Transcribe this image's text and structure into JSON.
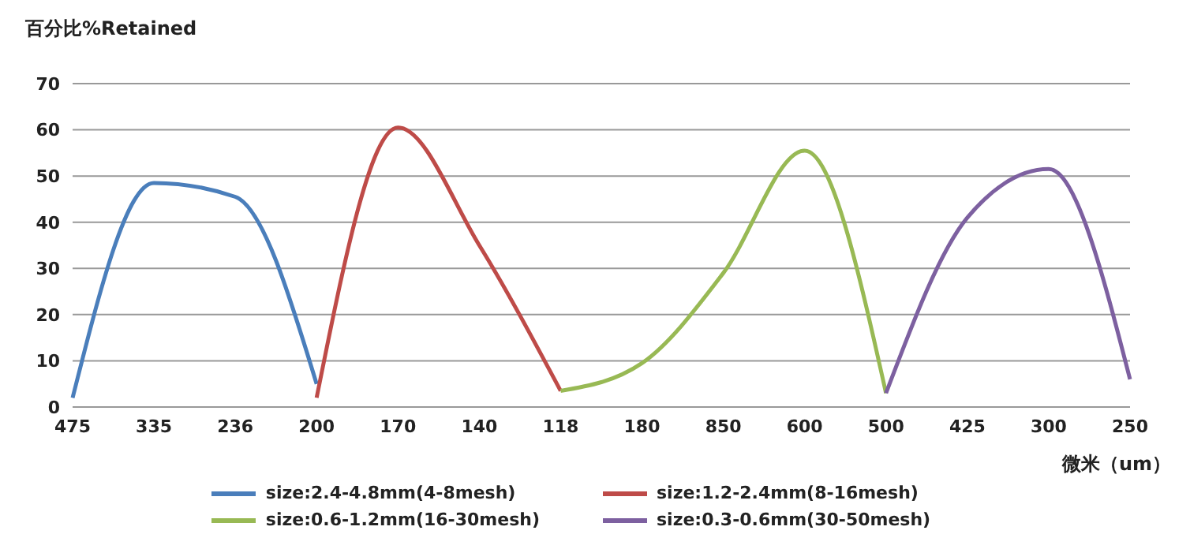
{
  "chart_data": {
    "type": "line",
    "ylabel": "百分比%Retained",
    "xlabel": "微米（um）",
    "categories": [
      "475",
      "335",
      "236",
      "200",
      "170",
      "140",
      "118",
      "180",
      "850",
      "600",
      "500",
      "425",
      "300",
      "250"
    ],
    "series": [
      {
        "name": "size:2.4-4.8mm(4-8mesh)",
        "color": "#4a7ebb",
        "values": [
          2,
          48.5,
          45.5,
          5,
          null,
          null,
          null,
          null,
          null,
          null,
          null,
          null,
          null,
          null
        ]
      },
      {
        "name": "size:1.2-2.4mm(8-16mesh)",
        "color": "#be4b48",
        "values": [
          null,
          null,
          null,
          2,
          60.5,
          35,
          3.5,
          null,
          null,
          null,
          null,
          null,
          null,
          null
        ]
      },
      {
        "name": "size:0.6-1.2mm(16-30mesh)",
        "color": "#98b954",
        "values": [
          null,
          null,
          null,
          null,
          null,
          null,
          3.5,
          9.5,
          29,
          55.5,
          3,
          null,
          null,
          null
        ]
      },
      {
        "name": "size:0.3-0.6mm(30-50mesh)",
        "color": "#7d60a0",
        "values": [
          null,
          null,
          null,
          null,
          null,
          null,
          null,
          null,
          null,
          null,
          3,
          41,
          51.5,
          6
        ]
      }
    ],
    "ylim": [
      0,
      70
    ],
    "yticks": [
      0,
      10,
      20,
      30,
      40,
      50,
      60,
      70
    ],
    "grid": "y",
    "legend": "bottom",
    "marker": "none",
    "line_style": "solid"
  }
}
